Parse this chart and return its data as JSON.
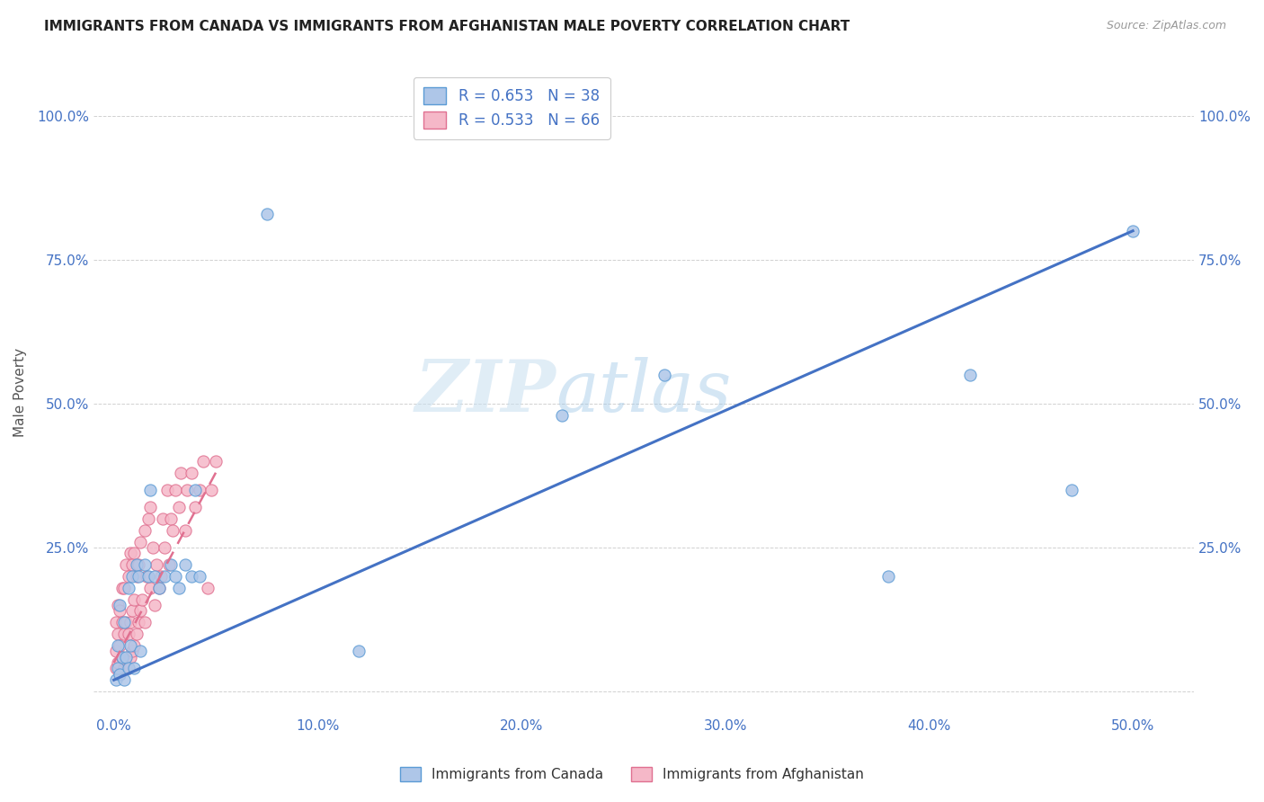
{
  "title": "IMMIGRANTS FROM CANADA VS IMMIGRANTS FROM AFGHANISTAN MALE POVERTY CORRELATION CHART",
  "source": "Source: ZipAtlas.com",
  "ylabel": "Male Poverty",
  "x_ticks": [
    0.0,
    0.1,
    0.2,
    0.3,
    0.4,
    0.5
  ],
  "x_tick_labels": [
    "0.0%",
    "10.0%",
    "20.0%",
    "30.0%",
    "40.0%",
    "50.0%"
  ],
  "y_ticks": [
    0.0,
    0.25,
    0.5,
    0.75,
    1.0
  ],
  "y_tick_labels": [
    "",
    "25.0%",
    "50.0%",
    "75.0%",
    "100.0%"
  ],
  "xlim": [
    -0.01,
    0.53
  ],
  "ylim": [
    -0.04,
    1.08
  ],
  "canada_R": 0.653,
  "canada_N": 38,
  "afghanistan_R": 0.533,
  "afghanistan_N": 66,
  "canada_color": "#aec6e8",
  "afghanistan_color": "#f5b8c8",
  "canada_edge_color": "#5b9bd5",
  "afghanistan_edge_color": "#e07090",
  "canada_line_color": "#4472c4",
  "afghanistan_line_color": "#e07090",
  "legend_label_canada": "Immigrants from Canada",
  "legend_label_afghanistan": "Immigrants from Afghanistan",
  "watermark_zip": "ZIP",
  "watermark_atlas": "atlas",
  "canada_scatter_x": [
    0.001,
    0.002,
    0.002,
    0.003,
    0.003,
    0.004,
    0.005,
    0.005,
    0.006,
    0.007,
    0.007,
    0.008,
    0.009,
    0.01,
    0.011,
    0.012,
    0.013,
    0.015,
    0.017,
    0.018,
    0.02,
    0.022,
    0.025,
    0.028,
    0.03,
    0.032,
    0.035,
    0.038,
    0.04,
    0.042,
    0.075,
    0.12,
    0.22,
    0.27,
    0.38,
    0.42,
    0.47,
    0.5
  ],
  "canada_scatter_y": [
    0.02,
    0.04,
    0.08,
    0.03,
    0.15,
    0.06,
    0.02,
    0.12,
    0.06,
    0.04,
    0.18,
    0.08,
    0.2,
    0.04,
    0.22,
    0.2,
    0.07,
    0.22,
    0.2,
    0.35,
    0.2,
    0.18,
    0.2,
    0.22,
    0.2,
    0.18,
    0.22,
    0.2,
    0.35,
    0.2,
    0.83,
    0.07,
    0.48,
    0.55,
    0.2,
    0.55,
    0.35,
    0.8
  ],
  "afghanistan_scatter_x": [
    0.001,
    0.001,
    0.001,
    0.002,
    0.002,
    0.002,
    0.003,
    0.003,
    0.003,
    0.004,
    0.004,
    0.004,
    0.005,
    0.005,
    0.005,
    0.006,
    0.006,
    0.006,
    0.007,
    0.007,
    0.007,
    0.008,
    0.008,
    0.008,
    0.009,
    0.009,
    0.009,
    0.01,
    0.01,
    0.01,
    0.011,
    0.011,
    0.012,
    0.012,
    0.013,
    0.013,
    0.014,
    0.015,
    0.015,
    0.016,
    0.017,
    0.018,
    0.018,
    0.019,
    0.02,
    0.021,
    0.022,
    0.023,
    0.024,
    0.025,
    0.026,
    0.027,
    0.028,
    0.029,
    0.03,
    0.032,
    0.033,
    0.035,
    0.036,
    0.038,
    0.04,
    0.042,
    0.044,
    0.046,
    0.048,
    0.05
  ],
  "afghanistan_scatter_y": [
    0.04,
    0.07,
    0.12,
    0.05,
    0.1,
    0.15,
    0.03,
    0.08,
    0.14,
    0.06,
    0.12,
    0.18,
    0.04,
    0.1,
    0.18,
    0.05,
    0.12,
    0.22,
    0.04,
    0.1,
    0.2,
    0.06,
    0.12,
    0.24,
    0.07,
    0.14,
    0.22,
    0.08,
    0.16,
    0.24,
    0.1,
    0.2,
    0.12,
    0.22,
    0.14,
    0.26,
    0.16,
    0.12,
    0.28,
    0.2,
    0.3,
    0.18,
    0.32,
    0.25,
    0.15,
    0.22,
    0.18,
    0.2,
    0.3,
    0.25,
    0.35,
    0.22,
    0.3,
    0.28,
    0.35,
    0.32,
    0.38,
    0.28,
    0.35,
    0.38,
    0.32,
    0.35,
    0.4,
    0.18,
    0.35,
    0.4
  ],
  "canada_line_x": [
    0.0,
    0.5
  ],
  "canada_line_y": [
    0.02,
    0.8
  ],
  "afghanistan_line_x": [
    0.0,
    0.05
  ],
  "afghanistan_line_y": [
    0.05,
    0.38
  ]
}
